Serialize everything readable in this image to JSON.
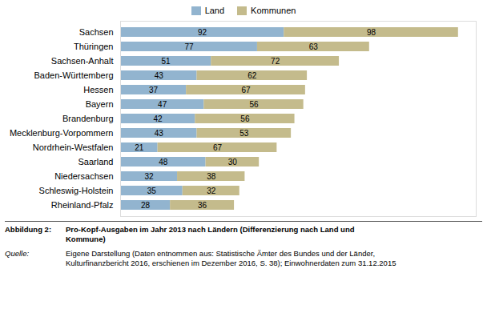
{
  "chart_data": {
    "type": "bar",
    "orientation": "horizontal",
    "stacked": true,
    "categories": [
      "Sachsen",
      "Thüringen",
      "Sachsen-Anhalt",
      "Baden-Württemberg",
      "Hessen",
      "Bayern",
      "Brandenburg",
      "Mecklenburg-Vorpommern",
      "Nordrhein-Westfalen",
      "Saarland",
      "Niedersachsen",
      "Schleswig-Holstein",
      "Rheinland-Pfalz"
    ],
    "series": [
      {
        "name": "Land",
        "color": "#92b4cf",
        "values": [
          92,
          77,
          51,
          43,
          37,
          47,
          42,
          43,
          21,
          48,
          32,
          35,
          28
        ]
      },
      {
        "name": "Kommunen",
        "color": "#c4bb8c",
        "values": [
          98,
          63,
          72,
          62,
          67,
          56,
          56,
          53,
          67,
          30,
          38,
          32,
          36
        ]
      }
    ],
    "xlim": [
      0,
      200
    ],
    "data_labels": true,
    "tick_labels": "y",
    "legend": "top",
    "annotations": [
      "Abbildung 2:",
      "Pro-Kopf-Ausgaben im Jahr 2013 nach Ländern (Differenzierung nach Land und\nKommune)",
      "Quelle:",
      "Eigene Darstellung (Daten entnommen aus: Statistische Ämter des Bundes und der Länder,\nKulturfinanzbericht 2016, erschienen im Dezember 2016, S. 38); Einwohnerdaten zum 31.12.2015"
    ]
  }
}
